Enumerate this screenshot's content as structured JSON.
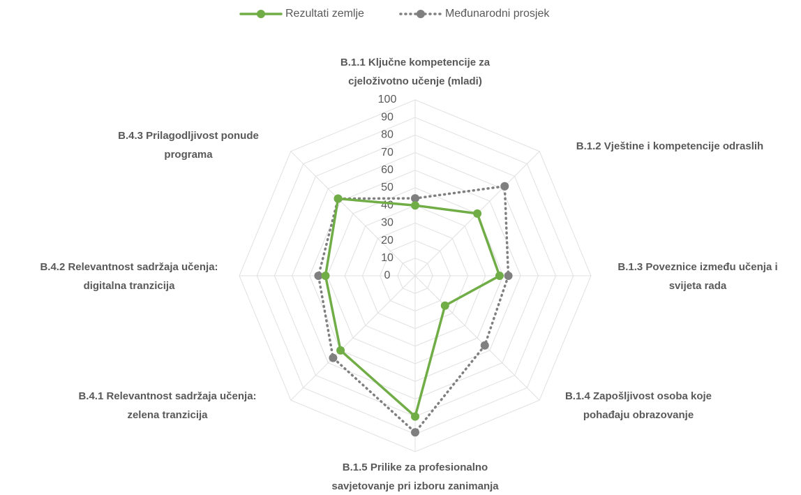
{
  "chart_data": {
    "type": "radar",
    "categories": [
      "B.1.1 Ključne kompetencije za\ncjeloživotno učenje (mladi)",
      "B.1.2 Vještine i kompetencije odraslih",
      "B.1.3 Poveznice između učenja i\nsvijeta rada",
      "B.1.4 Zapošljivost osoba koje\npohađaju obrazovanje",
      "B.1.5 Prilike za profesionalno\nsavjetovanje pri izboru zanimanja",
      "B.4.1 Relevantnost sadržaja učenja:\nzelena tranzicija",
      "B.4.2 Relevantnost sadržaja učenja:\ndigitalna tranzicija",
      "B.4.3 Prilagodljivost ponude\nprograma"
    ],
    "series": [
      {
        "name": "Rezultati zemlje",
        "color": "#70ad47",
        "dash": "solid",
        "values": [
          40,
          50,
          48,
          24,
          80,
          60,
          51,
          62
        ]
      },
      {
        "name": "Međunarodni prosjek",
        "color": "#7f7f7f",
        "dash": "dotted",
        "values": [
          44,
          72,
          53,
          56,
          89,
          66,
          55,
          62
        ]
      }
    ],
    "ylim": [
      0,
      100
    ],
    "yticks": [
      0,
      10,
      20,
      30,
      40,
      50,
      60,
      70,
      80,
      90,
      100
    ],
    "grid": true,
    "legend": "top"
  }
}
